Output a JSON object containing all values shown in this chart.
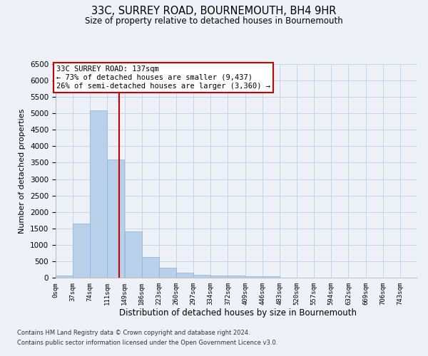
{
  "title": "33C, SURREY ROAD, BOURNEMOUTH, BH4 9HR",
  "subtitle": "Size of property relative to detached houses in Bournemouth",
  "xlabel": "Distribution of detached houses by size in Bournemouth",
  "ylabel": "Number of detached properties",
  "bar_labels": [
    "0sqm",
    "37sqm",
    "74sqm",
    "111sqm",
    "149sqm",
    "186sqm",
    "223sqm",
    "260sqm",
    "297sqm",
    "334sqm",
    "372sqm",
    "409sqm",
    "446sqm",
    "483sqm",
    "520sqm",
    "557sqm",
    "594sqm",
    "632sqm",
    "669sqm",
    "706sqm",
    "743sqm"
  ],
  "bar_values": [
    75,
    1650,
    5100,
    3600,
    1400,
    620,
    310,
    155,
    90,
    60,
    60,
    50,
    50,
    0,
    0,
    0,
    0,
    0,
    0,
    0,
    0
  ],
  "bar_color": "#b8d0ea",
  "bar_edge_color": "#88b4d8",
  "grid_color": "#c8d4e4",
  "background_color": "#eef2f8",
  "vline_color": "#cc0000",
  "ylim": [
    0,
    6500
  ],
  "yticks": [
    0,
    500,
    1000,
    1500,
    2000,
    2500,
    3000,
    3500,
    4000,
    4500,
    5000,
    5500,
    6000,
    6500
  ],
  "annotation_line1": "33C SURREY ROAD: 137sqm",
  "annotation_line2": "← 73% of detached houses are smaller (9,437)",
  "annotation_line3": "26% of semi-detached houses are larger (3,360) →",
  "footer_line1": "Contains HM Land Registry data © Crown copyright and database right 2024.",
  "footer_line2": "Contains public sector information licensed under the Open Government Licence v3.0.",
  "bin_width": 37,
  "property_sqm": 137
}
